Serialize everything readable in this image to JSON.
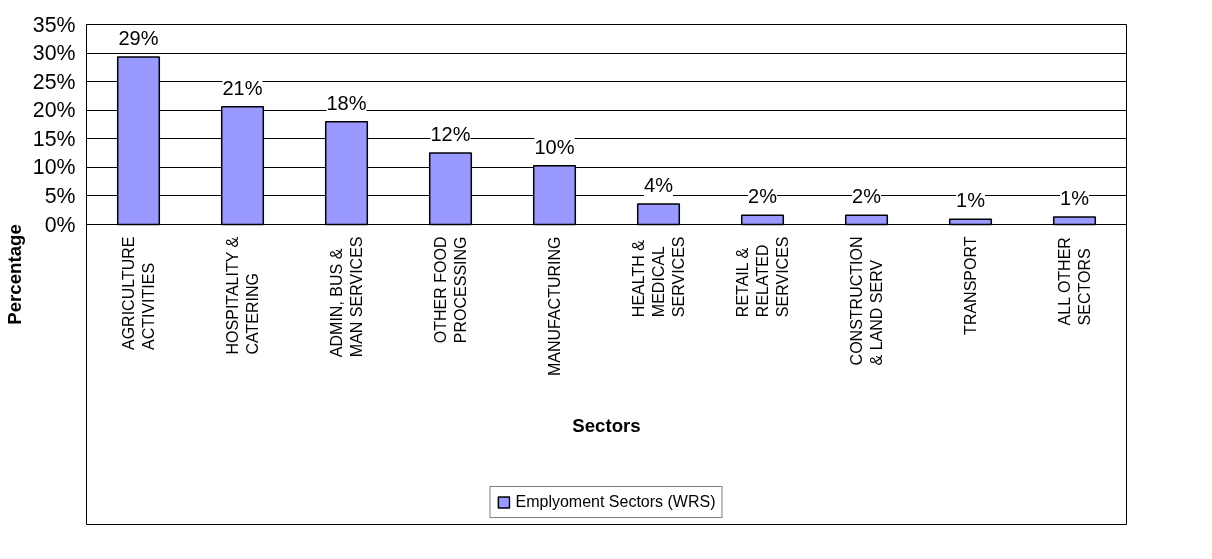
{
  "chart_data": {
    "type": "bar",
    "xlabel": "Sectors",
    "ylabel": "Percentage",
    "categories": [
      "AGRICULTURE ACTIVITIES",
      "HOSPITALITY & CATERING",
      "ADMIN, BUS & MAN SERVICES",
      "OTHER FOOD PROCESSING",
      "MANUFACTURING",
      "HEALTH & MEDICAL SERVICES",
      "RETAIL & RELATED SERVICES",
      "CONSTRUCTION & LAND SERV",
      "TRANSPORT",
      "ALL OTHER SECTORS"
    ],
    "series": [
      {
        "name": "Emplyoment Sectors (WRS)",
        "color": "#9999ff",
        "values": [
          29.3,
          20.6,
          18.0,
          12.5,
          10.3,
          3.6,
          1.6,
          1.6,
          0.9,
          1.3
        ],
        "value_labels": [
          "29%",
          "21%",
          "18%",
          "12%",
          "10%",
          "4%",
          "2%",
          "2%",
          "1%",
          "1%"
        ]
      }
    ],
    "ylim": [
      0,
      35
    ],
    "yticks": [
      {
        "value": 0,
        "label": "0%"
      },
      {
        "value": 5,
        "label": "5%"
      },
      {
        "value": 10,
        "label": "10%"
      },
      {
        "value": 15,
        "label": "15%"
      },
      {
        "value": 20,
        "label": "20%"
      },
      {
        "value": 25,
        "label": "25%"
      },
      {
        "value": 30,
        "label": "30%"
      },
      {
        "value": 35,
        "label": "35%"
      }
    ],
    "grid": "y",
    "legend": "bottom"
  }
}
